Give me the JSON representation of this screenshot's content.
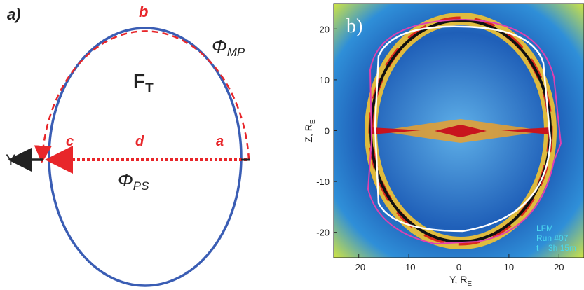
{
  "panel_a": {
    "label": "a)",
    "point_b": "b",
    "point_c": "c",
    "point_d": "d",
    "point_a": "a",
    "axis": "Y",
    "flux_mp": {
      "symbol": "Φ",
      "sub": "MP"
    },
    "flux_total": {
      "symbol": "F",
      "sub": "T"
    },
    "flux_ps": {
      "symbol": "Φ",
      "sub": "PS"
    }
  },
  "panel_b": {
    "label": "b)",
    "xlabel": {
      "text": "Y, R",
      "sub": "E"
    },
    "ylabel": {
      "text": "Z, R",
      "sub": "E"
    },
    "xlim": [
      -25,
      25
    ],
    "ylim": [
      -25,
      25
    ],
    "xticks": [
      -20,
      -10,
      0,
      10,
      20
    ],
    "yticks": [
      -20,
      -10,
      0,
      10,
      20
    ],
    "annotation": [
      "LFM",
      "Run #07",
      "t = 3h 15m"
    ]
  }
}
